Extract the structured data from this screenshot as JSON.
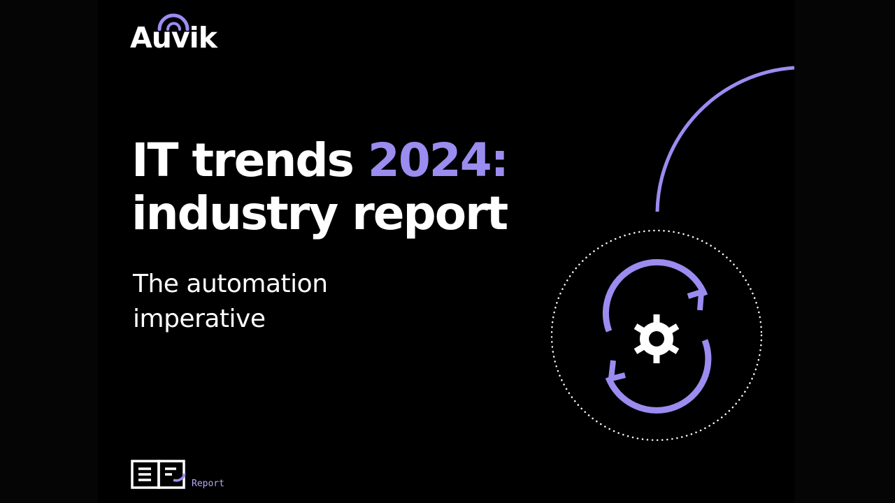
{
  "brand": {
    "name": "Auvik"
  },
  "headline": {
    "part1": "IT trends ",
    "accent": "2024:",
    "part2": "industry report"
  },
  "subtitle": {
    "line1": "The automation",
    "line2": "imperative"
  },
  "footer": {
    "label": "Report"
  },
  "icons": {
    "logo": "auvik-logo",
    "main": "gear-with-refresh-arrows-icon",
    "footer": "open-book-report-icon"
  },
  "colors": {
    "background": "#000000",
    "accent": "#9b8cf0",
    "text": "#ffffff"
  }
}
